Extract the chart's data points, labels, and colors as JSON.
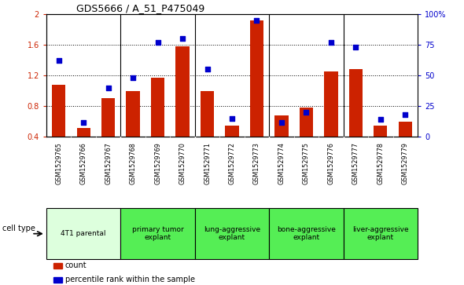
{
  "title": "GDS5666 / A_51_P475049",
  "samples": [
    "GSM1529765",
    "GSM1529766",
    "GSM1529767",
    "GSM1529768",
    "GSM1529769",
    "GSM1529770",
    "GSM1529771",
    "GSM1529772",
    "GSM1529773",
    "GSM1529774",
    "GSM1529775",
    "GSM1529776",
    "GSM1529777",
    "GSM1529778",
    "GSM1529779"
  ],
  "counts": [
    1.08,
    0.52,
    0.9,
    1.0,
    1.17,
    1.58,
    1.0,
    0.55,
    1.92,
    0.68,
    0.78,
    1.25,
    1.28,
    0.55,
    0.6
  ],
  "percentiles": [
    62,
    12,
    40,
    48,
    77,
    80,
    55,
    15,
    95,
    12,
    20,
    77,
    73,
    14,
    18
  ],
  "cell_types": [
    {
      "label": "4T1 parental",
      "start": 0,
      "end": 3,
      "color": "#ddffdd"
    },
    {
      "label": "primary tumor\nexplant",
      "start": 3,
      "end": 6,
      "color": "#55ee55"
    },
    {
      "label": "lung-aggressive\nexplant",
      "start": 6,
      "end": 9,
      "color": "#55ee55"
    },
    {
      "label": "bone-aggressive\nexplant",
      "start": 9,
      "end": 12,
      "color": "#55ee55"
    },
    {
      "label": "liver-aggressive\nexplant",
      "start": 12,
      "end": 15,
      "color": "#55ee55"
    }
  ],
  "group_borders": [
    3,
    6,
    9,
    12
  ],
  "ylim_left": [
    0.4,
    2.0
  ],
  "ylim_right": [
    0,
    100
  ],
  "bar_color": "#cc2200",
  "dot_color": "#0000cc",
  "bar_width": 0.55,
  "yticks_left": [
    0.4,
    0.8,
    1.2,
    1.6,
    2.0
  ],
  "ytick_labels_left": [
    "0.4",
    "0.8",
    "1.2",
    "1.6",
    "2"
  ],
  "yticks_right": [
    0,
    25,
    50,
    75,
    100
  ],
  "ytick_labels_right": [
    "0",
    "25",
    "50",
    "75",
    "100%"
  ],
  "gridlines": [
    0.8,
    1.2,
    1.6
  ],
  "xtick_gray": "#cccccc",
  "cell_type_border_color": "#000000",
  "legend_items": [
    {
      "label": "count",
      "color": "#cc2200"
    },
    {
      "label": "percentile rank within the sample",
      "color": "#0000cc"
    }
  ]
}
